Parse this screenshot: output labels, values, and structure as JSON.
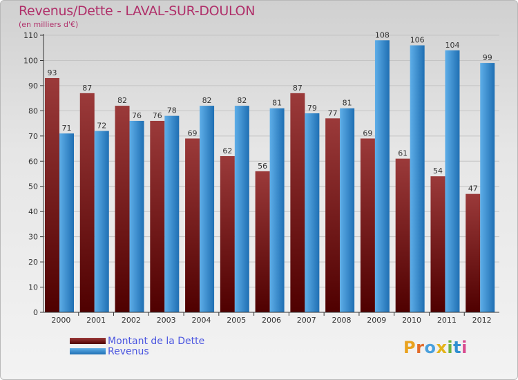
{
  "title": "Revenus/Dette - LAVAL-SUR-DOULON",
  "subtitle": "(en milliers d'€)",
  "colors": {
    "dette_dark": "#4f0000",
    "dette_light": "#9b3a3a",
    "revenus_dark": "#1f6fb3",
    "revenus_light": "#5eaee8",
    "title": "#b0306a",
    "legend_text": "#4a55e0"
  },
  "logo": {
    "letters": [
      {
        "ch": "P",
        "color": "#e9a21e"
      },
      {
        "ch": "r",
        "color": "#e26c2b"
      },
      {
        "ch": "o",
        "color": "#4aa0dc"
      },
      {
        "ch": "x",
        "color": "#e4b319"
      },
      {
        "ch": "i",
        "color": "#6cb33f"
      },
      {
        "ch": "t",
        "color": "#2f8fd0"
      },
      {
        "ch": "i",
        "color": "#d84a8f"
      }
    ]
  },
  "chart_data": {
    "type": "bar",
    "categories": [
      "2000",
      "2001",
      "2002",
      "2003",
      "2004",
      "2005",
      "2006",
      "2007",
      "2008",
      "2009",
      "2010",
      "2011",
      "2012"
    ],
    "series": [
      {
        "name": "Montant de la Dette",
        "values": [
          93,
          87,
          82,
          76,
          69,
          62,
          56,
          87,
          77,
          69,
          61,
          54,
          47
        ]
      },
      {
        "name": "Revenus",
        "values": [
          71,
          72,
          76,
          78,
          82,
          82,
          81,
          79,
          81,
          108,
          106,
          104,
          99
        ]
      }
    ],
    "ylim": [
      0,
      110
    ],
    "yticks": [
      0,
      10,
      20,
      30,
      40,
      50,
      60,
      70,
      80,
      90,
      100,
      110
    ],
    "grid": true,
    "legend": "bottom-left"
  }
}
